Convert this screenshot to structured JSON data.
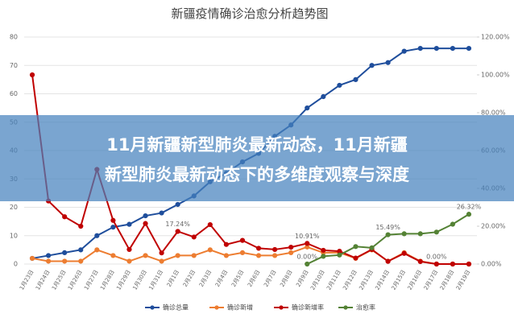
{
  "chart_data": {
    "type": "line",
    "title": "新疆疫情确诊治愈分析趋势图",
    "categories": [
      "1月23日",
      "1月24日",
      "1月25日",
      "1月26日",
      "1月27日",
      "1月28日",
      "1月29日",
      "1月30日",
      "1月31日",
      "2月1日",
      "2月2日",
      "2月3日",
      "2月4日",
      "2月5日",
      "2月6日",
      "2月7日",
      "2月8日",
      "2月9日",
      "2月10日",
      "2月11日",
      "2月12日",
      "2月13日",
      "2月14日",
      "2月15日",
      "2月16日",
      "2月17日",
      "2月18日",
      "2月19日"
    ],
    "series": [
      {
        "name": "确诊总量",
        "color": "#1f4e9c",
        "values": [
          2,
          3,
          4,
          5,
          10,
          13,
          14,
          17,
          18,
          21,
          24,
          29,
          32,
          36,
          39,
          45,
          49,
          55,
          59,
          63,
          65,
          70,
          71,
          75,
          76,
          76,
          76,
          76
        ]
      },
      {
        "name": "确诊新增",
        "color": "#ed7d31",
        "values": [
          2,
          1,
          1,
          1,
          5,
          3,
          1,
          3,
          1,
          3,
          3,
          5,
          3,
          4,
          3,
          3,
          4,
          6,
          4,
          4,
          2,
          5,
          1,
          4,
          1,
          0,
          0,
          0
        ]
      },
      {
        "name": "确诊新增率",
        "color": "#c00000",
        "axis": "y2",
        "values": [
          100,
          33.33,
          25,
          20,
          50,
          23.08,
          7.69,
          21.43,
          5.88,
          17.24,
          14.29,
          20.83,
          10.34,
          12.5,
          8.33,
          7.69,
          8.89,
          10.91,
          7.27,
          6.78,
          3.17,
          7.69,
          1.43,
          5.63,
          1.33,
          0,
          0,
          0
        ],
        "value_labels": [
          null,
          null,
          null,
          null,
          null,
          null,
          null,
          null,
          null,
          "17.24%",
          null,
          null,
          null,
          null,
          null,
          null,
          null,
          "10.91%",
          null,
          null,
          null,
          null,
          null,
          null,
          null,
          "0.00%",
          null,
          null
        ]
      },
      {
        "name": "治愈率",
        "color": "#548235",
        "axis": "y2",
        "values": [
          null,
          null,
          null,
          null,
          null,
          null,
          null,
          null,
          null,
          null,
          null,
          null,
          null,
          null,
          null,
          null,
          null,
          0,
          4.08,
          4.76,
          9.23,
          8.57,
          15.49,
          16,
          16,
          16.88,
          21.05,
          26.32
        ],
        "value_labels": [
          null,
          null,
          null,
          null,
          null,
          null,
          null,
          null,
          null,
          null,
          null,
          null,
          null,
          null,
          null,
          null,
          null,
          "0.00%",
          null,
          null,
          null,
          null,
          "15.49%",
          null,
          null,
          null,
          null,
          "26.32%"
        ]
      }
    ],
    "ylim": [
      0,
      80
    ],
    "yticks": [
      0,
      10,
      20,
      30,
      40,
      50,
      60,
      70,
      80
    ],
    "y2lim": [
      0,
      120
    ],
    "y2ticks": [
      {
        "value": 0,
        "label": "0.00%"
      },
      {
        "value": 20,
        "label": "20.00%"
      },
      {
        "value": 40,
        "label": "40.00%"
      },
      {
        "value": 60,
        "label": "60.00%"
      },
      {
        "value": 80,
        "label": "80.00%"
      },
      {
        "value": 100,
        "label": "100.00%"
      },
      {
        "value": 120,
        "label": "120.00%"
      }
    ],
    "grid": true
  },
  "banner": {
    "lines": [
      "11月新疆新型肺炎最新动态，11月新疆",
      "新型肺炎最新动态下的多维度观察与深度"
    ]
  }
}
